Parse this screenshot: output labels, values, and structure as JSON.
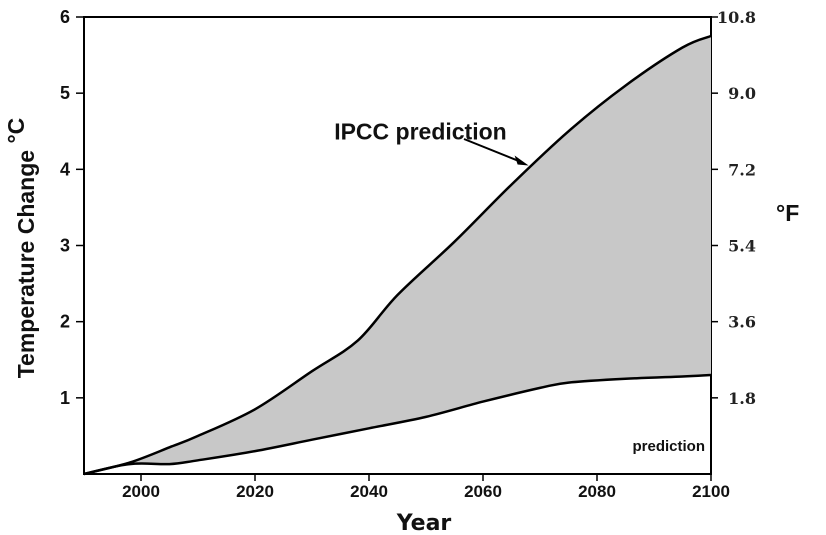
{
  "chart_data": {
    "type": "area",
    "xlabel": "Year",
    "ylabel": "Temperature Change",
    "ylabel_unit": "°C",
    "y2label": "°F",
    "xlim": [
      1990,
      2100
    ],
    "ylim": [
      0,
      6
    ],
    "x_ticks": [
      "2000",
      "2020",
      "2040",
      "2060",
      "2080",
      "2100"
    ],
    "y_ticks": [
      "1",
      "2",
      "3",
      "4",
      "5",
      "6"
    ],
    "y2_ticks": [
      "1.8",
      "3.6",
      "5.4",
      "7.2",
      "9.0",
      "10.8"
    ],
    "grid": false,
    "fill_color": "#c8c8c8",
    "series": [
      {
        "name": "IPCC prediction",
        "x": [
          1990,
          1998,
          2005,
          2010,
          2020,
          2030,
          2038,
          2045,
          2055,
          2065,
          2075,
          2085,
          2095,
          2100
        ],
        "y": [
          0.0,
          0.15,
          0.35,
          0.5,
          0.85,
          1.35,
          1.75,
          2.35,
          3.05,
          3.8,
          4.5,
          5.1,
          5.6,
          5.75
        ]
      },
      {
        "name": "prediction",
        "x": [
          1990,
          1998,
          2005,
          2010,
          2020,
          2030,
          2040,
          2050,
          2060,
          2070,
          2075,
          2085,
          2095,
          2100
        ],
        "y": [
          0.0,
          0.13,
          0.13,
          0.18,
          0.3,
          0.45,
          0.6,
          0.75,
          0.95,
          1.13,
          1.2,
          1.25,
          1.28,
          1.3
        ]
      }
    ],
    "annotations": [
      {
        "text": "IPCC prediction",
        "x": 2036,
        "y": 4.5,
        "arrow_to": [
          2068,
          4.05
        ]
      },
      {
        "text": "prediction",
        "x": 2086,
        "y": 0.3
      }
    ]
  }
}
